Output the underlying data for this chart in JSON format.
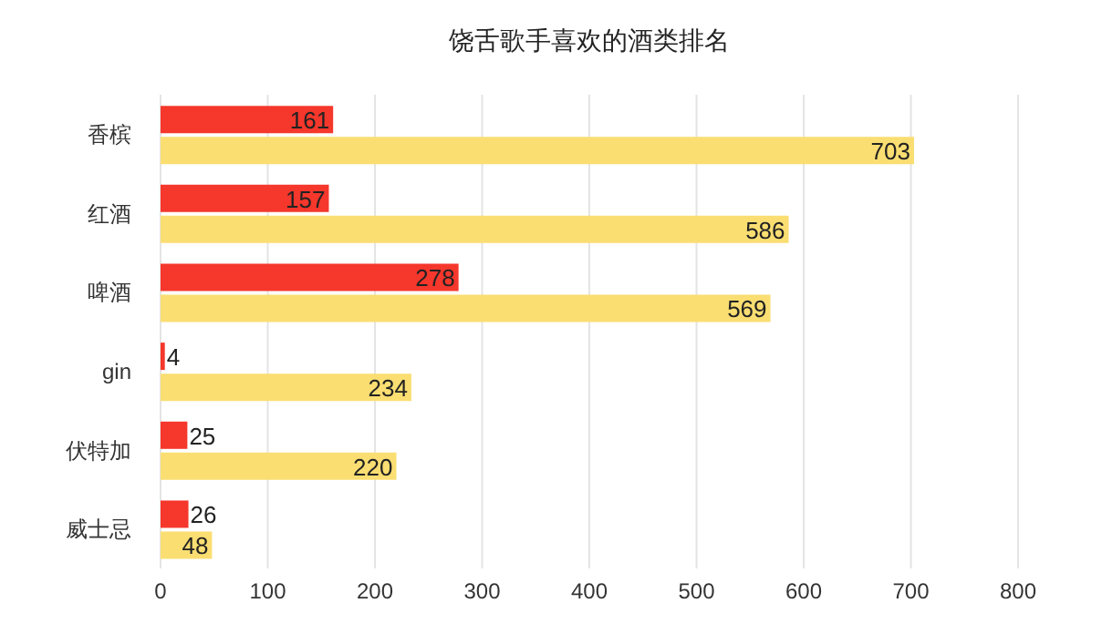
{
  "chart_data": {
    "type": "bar",
    "orientation": "horizontal",
    "title": "饶舌歌手喜欢的酒类排名",
    "categories": [
      "香槟",
      "红酒",
      "啤酒",
      "gin",
      "伏特加",
      "威士忌"
    ],
    "series": [
      {
        "color": "#f5372c",
        "values": [
          161,
          157,
          278,
          4,
          25,
          26
        ]
      },
      {
        "color": "#fade72",
        "values": [
          703,
          586,
          569,
          234,
          220,
          48
        ]
      }
    ],
    "xlim": [
      0,
      800
    ],
    "xticks": [
      0,
      100,
      200,
      300,
      400,
      500,
      600,
      700,
      800
    ],
    "grid": "x",
    "data_labels": true
  }
}
